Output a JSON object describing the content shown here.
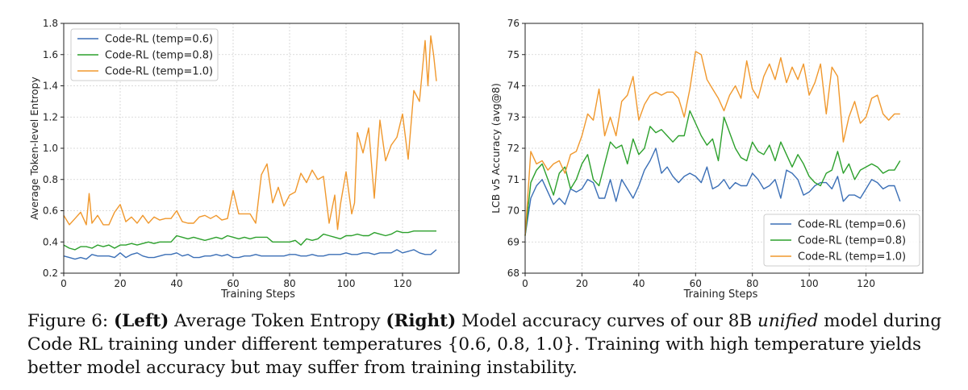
{
  "chart_data": [
    {
      "type": "line",
      "id": "left",
      "title": "",
      "xlabel": "Training Steps",
      "ylabel": "Average Token-level Entropy",
      "xlim": [
        0,
        140
      ],
      "ylim": [
        0.2,
        1.8
      ],
      "xticks": [
        "0",
        "20",
        "40",
        "60",
        "80",
        "100",
        "120"
      ],
      "xtick_values": [
        0,
        20,
        40,
        60,
        80,
        100,
        120
      ],
      "yticks": [
        "0.2",
        "0.4",
        "0.6",
        "0.8",
        "1.0",
        "1.2",
        "1.4",
        "1.6",
        "1.8"
      ],
      "ytick_values": [
        0.2,
        0.4,
        0.6,
        0.8,
        1.0,
        1.2,
        1.4,
        1.6,
        1.8
      ],
      "grid": true,
      "legend_position": "top-left",
      "series": [
        {
          "name": "Code-RL (temp=0.6)",
          "color": "#3b6fb6",
          "x": [
            0,
            2,
            4,
            6,
            8,
            10,
            12,
            14,
            16,
            18,
            20,
            22,
            24,
            26,
            28,
            30,
            32,
            34,
            36,
            38,
            40,
            42,
            44,
            46,
            48,
            50,
            52,
            54,
            56,
            58,
            60,
            62,
            64,
            66,
            68,
            70,
            72,
            74,
            76,
            78,
            80,
            82,
            84,
            86,
            88,
            90,
            92,
            94,
            96,
            98,
            100,
            102,
            104,
            106,
            108,
            110,
            112,
            114,
            116,
            118,
            120,
            122,
            124,
            126,
            128,
            130,
            132
          ],
          "values": [
            0.31,
            0.3,
            0.29,
            0.3,
            0.29,
            0.32,
            0.31,
            0.31,
            0.31,
            0.3,
            0.33,
            0.3,
            0.32,
            0.33,
            0.31,
            0.3,
            0.3,
            0.31,
            0.32,
            0.32,
            0.33,
            0.31,
            0.32,
            0.3,
            0.3,
            0.31,
            0.31,
            0.32,
            0.31,
            0.32,
            0.3,
            0.3,
            0.31,
            0.31,
            0.32,
            0.31,
            0.31,
            0.31,
            0.31,
            0.31,
            0.32,
            0.32,
            0.31,
            0.31,
            0.32,
            0.31,
            0.31,
            0.32,
            0.32,
            0.32,
            0.33,
            0.32,
            0.32,
            0.33,
            0.33,
            0.32,
            0.33,
            0.33,
            0.33,
            0.35,
            0.33,
            0.34,
            0.35,
            0.33,
            0.32,
            0.32,
            0.35
          ]
        },
        {
          "name": "Code-RL (temp=0.8)",
          "color": "#2ca02c",
          "x": [
            0,
            2,
            4,
            6,
            8,
            10,
            12,
            14,
            16,
            18,
            20,
            22,
            24,
            26,
            28,
            30,
            32,
            34,
            36,
            38,
            40,
            42,
            44,
            46,
            48,
            50,
            52,
            54,
            56,
            58,
            60,
            62,
            64,
            66,
            68,
            70,
            72,
            74,
            76,
            78,
            80,
            82,
            84,
            86,
            88,
            90,
            92,
            94,
            96,
            98,
            100,
            102,
            104,
            106,
            108,
            110,
            112,
            114,
            116,
            118,
            120,
            122,
            124,
            126,
            128,
            130,
            132
          ],
          "values": [
            0.38,
            0.36,
            0.35,
            0.37,
            0.37,
            0.36,
            0.38,
            0.37,
            0.38,
            0.36,
            0.38,
            0.38,
            0.39,
            0.38,
            0.39,
            0.4,
            0.39,
            0.4,
            0.4,
            0.4,
            0.44,
            0.43,
            0.42,
            0.43,
            0.42,
            0.41,
            0.42,
            0.43,
            0.42,
            0.44,
            0.43,
            0.42,
            0.43,
            0.42,
            0.43,
            0.43,
            0.43,
            0.4,
            0.4,
            0.4,
            0.4,
            0.41,
            0.38,
            0.42,
            0.41,
            0.42,
            0.45,
            0.44,
            0.43,
            0.42,
            0.44,
            0.44,
            0.45,
            0.44,
            0.44,
            0.46,
            0.45,
            0.44,
            0.45,
            0.47,
            0.46,
            0.46,
            0.47,
            0.47,
            0.47,
            0.47,
            0.47
          ]
        },
        {
          "name": "Code-RL (temp=1.0)",
          "color": "#f0982d",
          "x": [
            0,
            2,
            4,
            6,
            8,
            9,
            10,
            12,
            14,
            16,
            18,
            20,
            22,
            24,
            26,
            28,
            30,
            32,
            34,
            36,
            38,
            40,
            42,
            44,
            46,
            48,
            50,
            52,
            54,
            56,
            58,
            60,
            62,
            64,
            66,
            68,
            70,
            72,
            74,
            76,
            78,
            80,
            82,
            84,
            86,
            88,
            90,
            92,
            94,
            96,
            97,
            98,
            100,
            102,
            103,
            104,
            106,
            108,
            110,
            112,
            114,
            116,
            118,
            120,
            122,
            124,
            126,
            128,
            129,
            130,
            131,
            132
          ],
          "values": [
            0.57,
            0.51,
            0.55,
            0.59,
            0.51,
            0.71,
            0.52,
            0.57,
            0.51,
            0.51,
            0.59,
            0.64,
            0.53,
            0.56,
            0.52,
            0.57,
            0.52,
            0.56,
            0.54,
            0.55,
            0.55,
            0.6,
            0.53,
            0.52,
            0.52,
            0.56,
            0.57,
            0.55,
            0.57,
            0.54,
            0.55,
            0.73,
            0.58,
            0.58,
            0.58,
            0.52,
            0.83,
            0.9,
            0.65,
            0.75,
            0.63,
            0.7,
            0.72,
            0.84,
            0.78,
            0.86,
            0.8,
            0.82,
            0.52,
            0.7,
            0.48,
            0.64,
            0.85,
            0.58,
            0.65,
            1.1,
            0.97,
            1.13,
            0.68,
            1.18,
            0.92,
            1.02,
            1.07,
            1.22,
            0.93,
            1.37,
            1.3,
            1.69,
            1.4,
            1.72,
            1.6,
            1.43
          ]
        }
      ]
    },
    {
      "type": "line",
      "id": "right",
      "title": "",
      "xlabel": "Training Steps",
      "ylabel": "LCB v5 Accuracy (avg@8)",
      "xlim": [
        0,
        140
      ],
      "ylim": [
        68,
        76
      ],
      "xticks": [
        "0",
        "20",
        "40",
        "60",
        "80",
        "100",
        "120"
      ],
      "xtick_values": [
        0,
        20,
        40,
        60,
        80,
        100,
        120
      ],
      "yticks": [
        "68",
        "69",
        "70",
        "71",
        "72",
        "73",
        "74",
        "75",
        "76"
      ],
      "ytick_values": [
        68,
        69,
        70,
        71,
        72,
        73,
        74,
        75,
        76
      ],
      "grid": true,
      "legend_position": "bottom-right",
      "series": [
        {
          "name": "Code-RL (temp=0.6)",
          "color": "#3b6fb6",
          "x": [
            0,
            2,
            4,
            6,
            8,
            10,
            12,
            14,
            16,
            18,
            20,
            22,
            24,
            26,
            28,
            30,
            32,
            34,
            36,
            38,
            40,
            42,
            44,
            46,
            48,
            50,
            52,
            54,
            56,
            58,
            60,
            62,
            64,
            66,
            68,
            70,
            72,
            74,
            76,
            78,
            80,
            82,
            84,
            86,
            88,
            90,
            92,
            94,
            96,
            98,
            100,
            102,
            104,
            106,
            108,
            110,
            112,
            114,
            116,
            118,
            120,
            122,
            124,
            126,
            128,
            130,
            132
          ],
          "values": [
            69.2,
            70.4,
            70.8,
            71.0,
            70.6,
            70.2,
            70.4,
            70.2,
            70.7,
            70.6,
            70.7,
            71.0,
            70.9,
            70.4,
            70.4,
            71.0,
            70.3,
            71.0,
            70.7,
            70.4,
            70.8,
            71.3,
            71.6,
            72.0,
            71.2,
            71.4,
            71.1,
            70.9,
            71.1,
            71.2,
            71.1,
            70.9,
            71.4,
            70.7,
            70.8,
            71.0,
            70.7,
            70.9,
            70.8,
            70.8,
            71.2,
            71.0,
            70.7,
            70.8,
            71.0,
            70.4,
            71.3,
            71.2,
            71.0,
            70.5,
            70.6,
            70.8,
            70.9,
            70.9,
            70.7,
            71.1,
            70.3,
            70.5,
            70.5,
            70.4,
            70.7,
            71.0,
            70.9,
            70.7,
            70.8,
            70.8,
            70.3
          ]
        },
        {
          "name": "Code-RL (temp=0.8)",
          "color": "#2ca02c",
          "x": [
            0,
            2,
            4,
            6,
            8,
            10,
            12,
            14,
            16,
            18,
            20,
            22,
            24,
            26,
            28,
            30,
            32,
            34,
            36,
            38,
            40,
            42,
            44,
            46,
            48,
            50,
            52,
            54,
            56,
            58,
            60,
            62,
            64,
            66,
            68,
            70,
            72,
            74,
            76,
            78,
            80,
            82,
            84,
            86,
            88,
            90,
            92,
            94,
            96,
            98,
            100,
            102,
            104,
            106,
            108,
            110,
            112,
            114,
            116,
            118,
            120,
            122,
            124,
            126,
            128,
            130,
            132
          ],
          "values": [
            69.2,
            70.9,
            71.3,
            71.5,
            71.0,
            70.5,
            71.2,
            71.4,
            70.7,
            71.0,
            71.5,
            71.8,
            71.0,
            70.8,
            71.5,
            72.2,
            72.0,
            72.1,
            71.5,
            72.3,
            71.8,
            72.0,
            72.7,
            72.5,
            72.6,
            72.4,
            72.2,
            72.4,
            72.4,
            73.2,
            72.8,
            72.4,
            72.1,
            72.3,
            71.6,
            73.0,
            72.5,
            72.0,
            71.7,
            71.6,
            72.2,
            71.9,
            71.8,
            72.1,
            71.6,
            72.2,
            71.8,
            71.4,
            71.8,
            71.5,
            71.1,
            70.9,
            70.8,
            71.2,
            71.3,
            71.9,
            71.2,
            71.5,
            71.0,
            71.3,
            71.4,
            71.5,
            71.4,
            71.2,
            71.3,
            71.3,
            71.6
          ]
        },
        {
          "name": "Code-RL (temp=1.0)",
          "color": "#f0982d",
          "x": [
            0,
            2,
            4,
            6,
            8,
            10,
            12,
            14,
            16,
            18,
            20,
            22,
            24,
            26,
            28,
            30,
            32,
            34,
            36,
            38,
            40,
            42,
            44,
            46,
            48,
            50,
            52,
            54,
            56,
            58,
            60,
            62,
            64,
            66,
            68,
            70,
            72,
            74,
            76,
            78,
            80,
            82,
            84,
            86,
            88,
            90,
            92,
            94,
            96,
            98,
            100,
            102,
            104,
            106,
            108,
            110,
            112,
            114,
            116,
            118,
            120,
            122,
            124,
            126,
            128,
            130,
            132
          ],
          "values": [
            69.2,
            71.9,
            71.5,
            71.6,
            71.3,
            71.5,
            71.6,
            71.2,
            71.8,
            71.9,
            72.4,
            73.1,
            72.9,
            73.9,
            72.4,
            73.0,
            72.4,
            73.5,
            73.7,
            74.3,
            72.9,
            73.4,
            73.7,
            73.8,
            73.7,
            73.8,
            73.8,
            73.6,
            73.0,
            73.9,
            75.1,
            75.0,
            74.2,
            73.9,
            73.6,
            73.2,
            73.7,
            74.0,
            73.6,
            74.8,
            73.9,
            73.6,
            74.3,
            74.7,
            74.2,
            74.9,
            74.1,
            74.6,
            74.2,
            74.7,
            73.7,
            74.1,
            74.7,
            73.1,
            74.6,
            74.3,
            72.2,
            73.0,
            73.5,
            72.8,
            73.0,
            73.6,
            73.7,
            73.1,
            72.9,
            73.1,
            73.1
          ]
        }
      ]
    }
  ],
  "caption": {
    "prefix": "Figure 6: ",
    "left_label": "(Left)",
    "text1": " Average Token Entropy ",
    "right_label": "(Right)",
    "text2": " Model accuracy curves of our 8B ",
    "italic_word": "unified",
    "text3": " model during Code RL training under different temperatures {0.6, 0.8, 1.0}. Training with high temperature yields better model accuracy but may suffer from training instability."
  }
}
